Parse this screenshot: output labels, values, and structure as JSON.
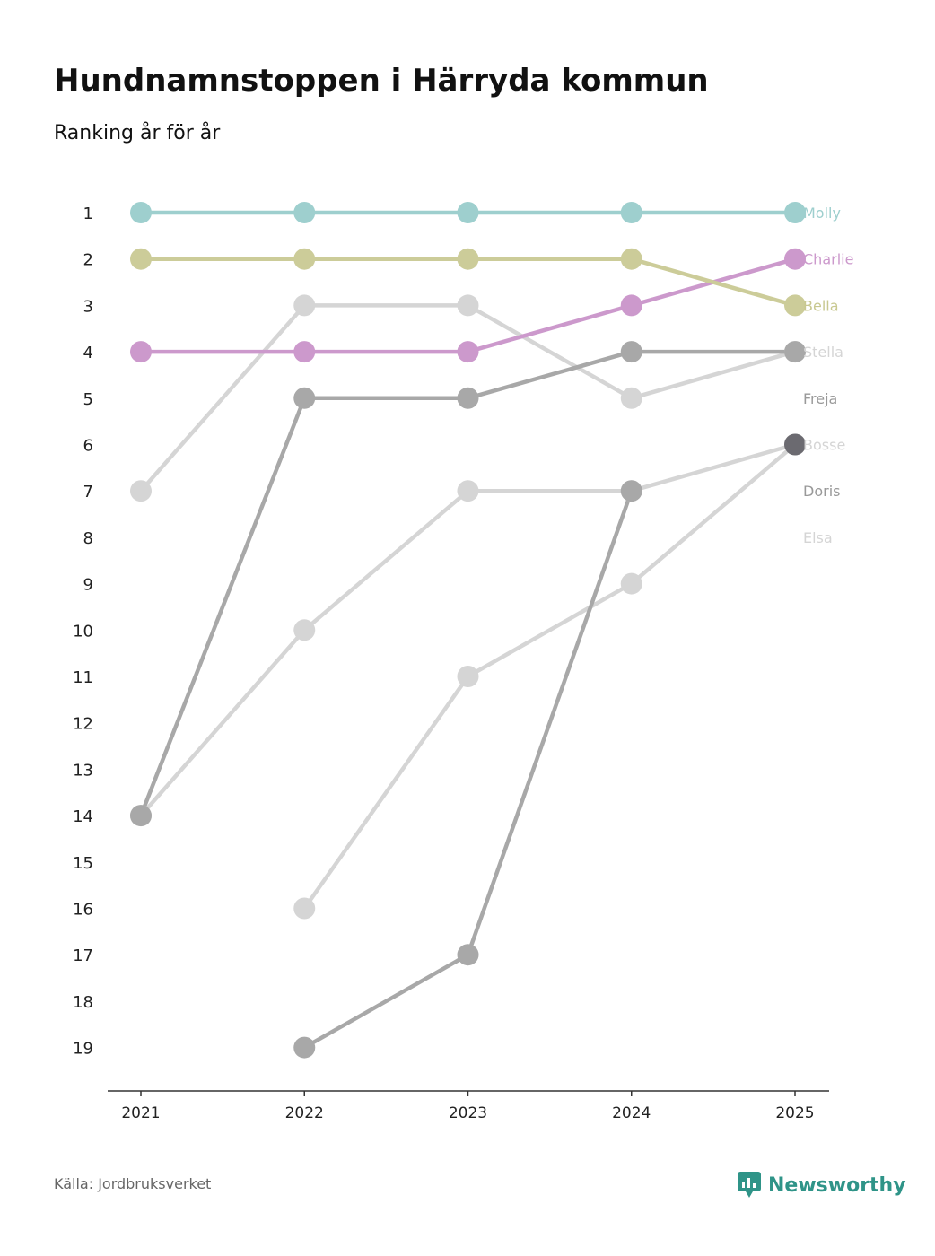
{
  "header": {
    "title": "Hundnamnstoppen i Härryda kommun",
    "subtitle": "Ranking år för år"
  },
  "footer": {
    "source": "Källa: Jordbruksverket",
    "brand": "Newsworthy",
    "brand_color": "#2f9488"
  },
  "chart_data": {
    "type": "line",
    "subtype": "bump",
    "title": "Hundnamnstoppen i Härryda kommun",
    "subtitle": "Ranking år för år",
    "x": [
      "2021",
      "2022",
      "2023",
      "2024",
      "2025"
    ],
    "y_ticks": [
      1,
      2,
      3,
      4,
      5,
      6,
      7,
      8,
      9,
      10,
      11,
      12,
      13,
      14,
      15,
      16,
      17,
      18,
      19
    ],
    "ylim": [
      1,
      19
    ],
    "y_inverted": true,
    "grid": false,
    "series": [
      {
        "name": "Molly",
        "color": "#9ecfce",
        "values": [
          1,
          1,
          1,
          1,
          1
        ]
      },
      {
        "name": "Charlie",
        "color": "#cc99cc",
        "values": [
          4,
          4,
          4,
          3,
          2
        ]
      },
      {
        "name": "Bella",
        "color": "#cccc99",
        "values": [
          2,
          2,
          2,
          2,
          3
        ]
      },
      {
        "name": "Stella",
        "color": "#d5d5d5",
        "values": [
          7,
          3,
          3,
          5,
          4
        ]
      },
      {
        "name": "Freja",
        "color": "#a8a8a8",
        "values": [
          14,
          5,
          5,
          4,
          4
        ]
      },
      {
        "name": "Bosse",
        "color": "#d5d5d5",
        "values": [
          null,
          16,
          11,
          9,
          6
        ]
      },
      {
        "name": "Doris",
        "color": "#a8a8a8",
        "values": [
          null,
          19,
          17,
          7,
          null
        ]
      },
      {
        "name": "Elsa",
        "color": "#d5d5d5",
        "values": [
          14,
          10,
          7,
          7,
          6
        ]
      }
    ],
    "end_labels": [
      {
        "name": "Molly",
        "rank": 1
      },
      {
        "name": "Charlie",
        "rank": 2
      },
      {
        "name": "Bella",
        "rank": 3
      },
      {
        "name": "Stella",
        "rank": 4
      },
      {
        "name": "Freja",
        "rank": 5
      },
      {
        "name": "Bosse",
        "rank": 6
      },
      {
        "name": "Doris",
        "rank": 7
      },
      {
        "name": "Elsa",
        "rank": 8
      }
    ],
    "end_label_colors": {
      "Molly": "#9ecfce",
      "Charlie": "#cc99cc",
      "Bella": "#c8c890",
      "Stella": "#d5d5d5",
      "Freja": "#999999",
      "Bosse": "#d5d5d5",
      "Doris": "#999999",
      "Elsa": "#d5d5d5"
    },
    "highlight_point": {
      "year": "2025",
      "rank": 6,
      "color": "#6b6a70"
    }
  }
}
